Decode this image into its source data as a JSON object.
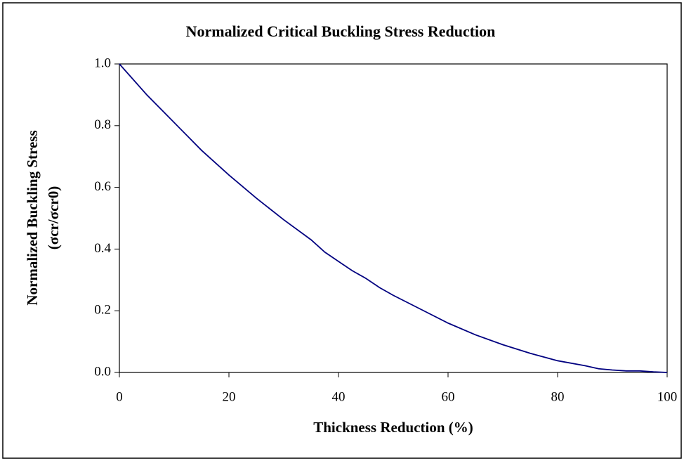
{
  "chart_data": {
    "type": "line",
    "title": "Normalized Critical Buckling Stress Reduction",
    "x_label": "Thickness Reduction (%)",
    "y_label": [
      "Normalized Buckling Stress",
      "(σcr/σcr0)"
    ],
    "x": [
      0,
      5,
      10,
      12.5,
      15,
      20,
      25,
      30,
      35,
      37.5,
      40,
      42.5,
      45,
      47.5,
      50,
      55,
      60,
      65,
      70,
      75,
      80,
      85,
      87.5,
      90,
      92.5,
      95,
      97.5,
      100
    ],
    "series": [
      {
        "name": "Normalized buckling stress",
        "color": "#000080",
        "values": [
          1.0,
          0.9,
          0.81,
          0.765,
          0.72,
          0.64,
          0.565,
          0.495,
          0.43,
          0.39,
          0.36,
          0.33,
          0.305,
          0.275,
          0.25,
          0.205,
          0.16,
          0.122,
          0.09,
          0.062,
          0.038,
          0.022,
          0.012,
          0.008,
          0.005,
          0.005,
          0.002,
          0.0
        ]
      }
    ],
    "xlim": [
      0,
      100
    ],
    "xticks": [
      0,
      20,
      40,
      60,
      80,
      100
    ],
    "ylim": [
      0,
      1
    ],
    "yticks": [
      {
        "value": 0,
        "label": "0.0"
      },
      0.2,
      0.4,
      0.6,
      0.8,
      {
        "value": 1,
        "label": "1.0"
      }
    ],
    "grid": false
  }
}
